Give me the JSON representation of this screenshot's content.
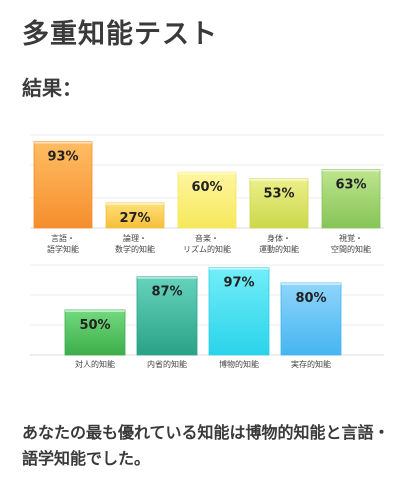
{
  "page": {
    "title": "多重知能テスト",
    "result_heading": "結果：",
    "summary": "あなたの最も優れている知能は博物的知能と言語・語学知能でした。"
  },
  "chart_data": [
    {
      "type": "bar",
      "categories": [
        [
          "言語・",
          "語学知能"
        ],
        [
          "論理・",
          "数学的知能"
        ],
        [
          "音楽・",
          "リズム的知能"
        ],
        [
          "身体・",
          "運動的知能"
        ],
        [
          "視覚・",
          "空間的知能"
        ]
      ],
      "values": [
        93,
        27,
        60,
        53,
        63
      ],
      "value_suffix": "%",
      "colors": [
        [
          "#ffbd63",
          "#f58e2d"
        ],
        [
          "#ffe07a",
          "#f6bf3a"
        ],
        [
          "#fff5a0",
          "#f5e85a"
        ],
        [
          "#ecf08a",
          "#cbd84a"
        ],
        [
          "#bfe58f",
          "#86c457"
        ]
      ],
      "ylim": [
        0,
        100
      ],
      "grid": true
    },
    {
      "type": "bar",
      "categories": [
        [
          "対人的知能"
        ],
        [
          "内省的知能"
        ],
        [
          "博物的知能"
        ],
        [
          "実存的知能"
        ]
      ],
      "values": [
        50,
        87,
        97,
        80
      ],
      "value_suffix": "%",
      "colors": [
        [
          "#73d97e",
          "#3cae4a"
        ],
        [
          "#66d3bd",
          "#2aa287"
        ],
        [
          "#72eef8",
          "#2ad3ea"
        ],
        [
          "#8fd5fb",
          "#45b5f1"
        ]
      ],
      "ylim": [
        0,
        100
      ],
      "grid": true
    }
  ]
}
